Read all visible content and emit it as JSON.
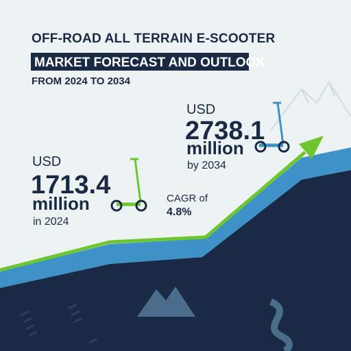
{
  "header": {
    "title": "OFF-ROAD ALL TERRAIN E-SCOOTER",
    "highlight": "MARKET FORECAST AND OUTLOOK",
    "subtitle": "FROM 2024 TO 2034"
  },
  "start": {
    "currency": "USD",
    "value": "1713.4",
    "unit": "million",
    "period": "in 2024"
  },
  "end": {
    "currency": "USD",
    "value": "2738.1",
    "unit": "million",
    "period": "by 2034"
  },
  "cagr": {
    "label": "CAGR of",
    "value": "4.8%"
  }
}
